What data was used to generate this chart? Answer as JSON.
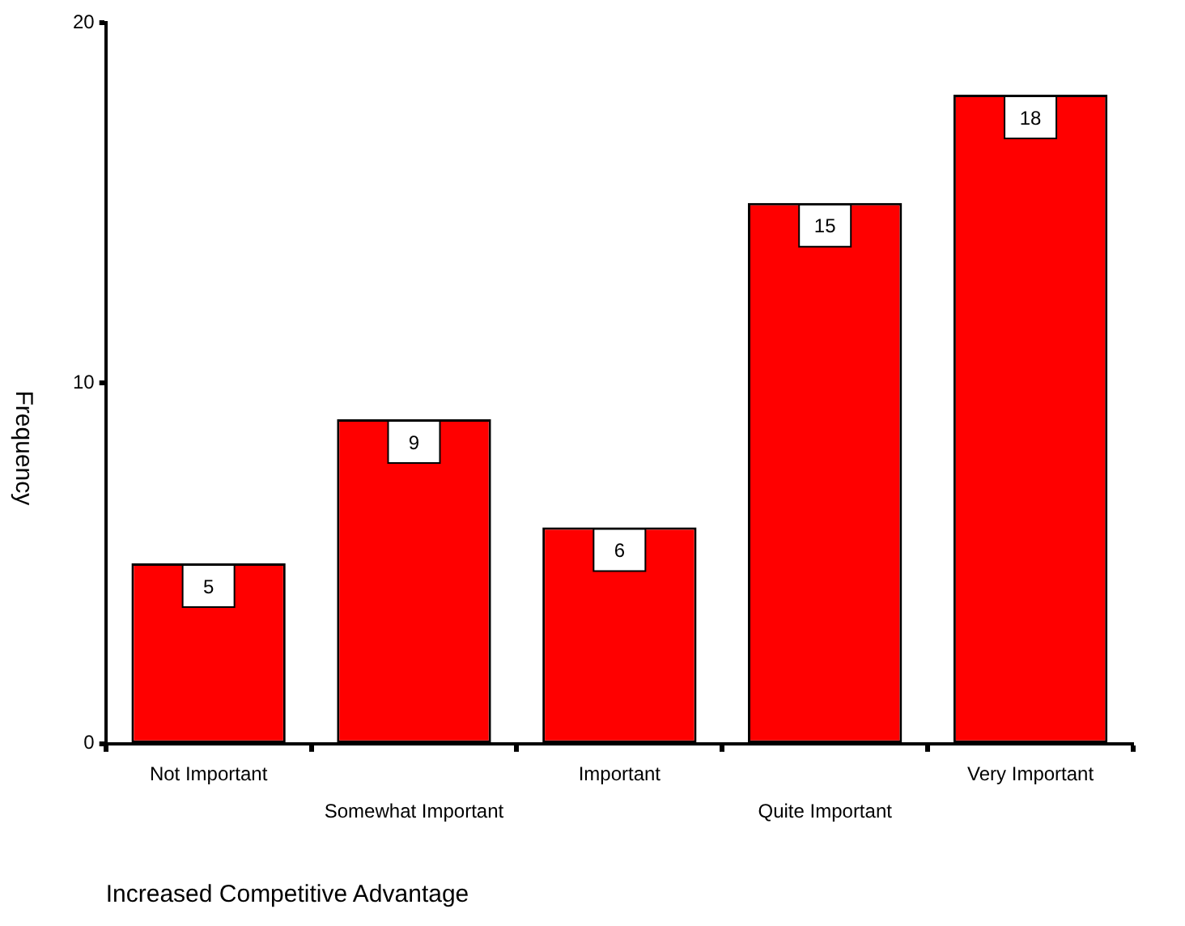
{
  "chart_data": {
    "type": "bar",
    "xlabel": "Increased Competitive Advantage",
    "ylabel": "Frequency",
    "categories": [
      "Not Important",
      "Somewhat Important",
      "Important",
      "Quite Important",
      "Very Important"
    ],
    "values": [
      5,
      9,
      6,
      15,
      18
    ],
    "color": "#ff0000",
    "ylim": [
      0,
      20
    ],
    "yticks": [
      0,
      10,
      20
    ],
    "grid": false,
    "data_labels": true
  }
}
